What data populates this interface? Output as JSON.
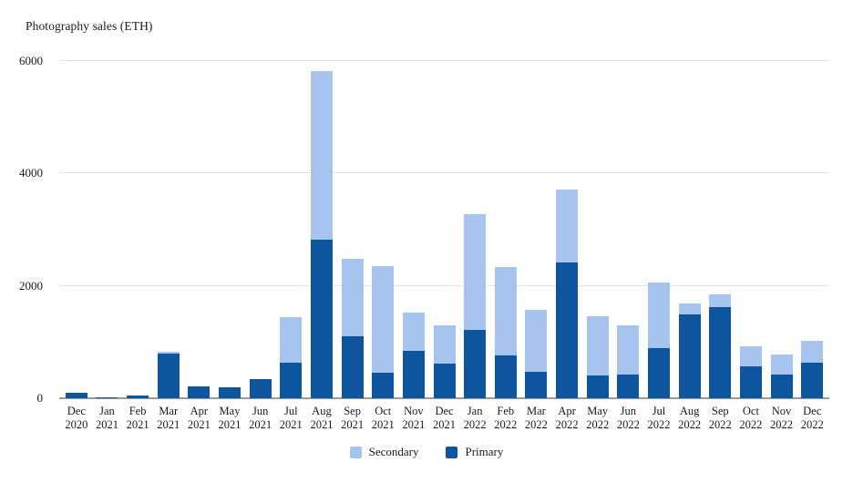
{
  "title": "Photography sales (ETH)",
  "colors": {
    "primary": "#0E55A0",
    "secondary": "#A7C4EF",
    "gridline": "#E3E3E3",
    "axis_line": "#9A9A9A",
    "text": "#1A1A1A"
  },
  "legend": {
    "items": [
      {
        "label": "Secondary",
        "color_key": "secondary"
      },
      {
        "label": "Primary",
        "color_key": "primary"
      }
    ]
  },
  "chart_data": {
    "type": "bar",
    "stacked": true,
    "title": "Photography sales (ETH)",
    "xlabel": "",
    "ylabel": "Photography sales (ETH)",
    "ylim": [
      0,
      6000
    ],
    "yticks": [
      0,
      2000,
      4000,
      6000
    ],
    "grid": "horizontal",
    "legend_position": "bottom-center",
    "categories": [
      "Dec 2020",
      "Jan 2021",
      "Feb 2021",
      "Mar 2021",
      "Apr 2021",
      "May 2021",
      "Jun 2021",
      "Jul 2021",
      "Aug 2021",
      "Sep 2021",
      "Oct 2021",
      "Nov 2021",
      "Dec 2021",
      "Jan 2022",
      "Feb 2022",
      "Mar 2022",
      "Apr 2022",
      "May 2022",
      "Jun 2022",
      "Jul 2022",
      "Aug 2022",
      "Sep 2022",
      "Oct 2022",
      "Nov 2022",
      "Dec 2022"
    ],
    "series": [
      {
        "name": "Primary",
        "color": "#0E55A0",
        "values": [
          90,
          10,
          55,
          800,
          205,
          195,
          340,
          640,
          2820,
          1110,
          460,
          850,
          620,
          1220,
          770,
          475,
          2420,
          405,
          415,
          895,
          1500,
          1620,
          570,
          420,
          640
        ]
      },
      {
        "name": "Secondary",
        "color": "#A7C4EF",
        "values": [
          0,
          0,
          0,
          30,
          0,
          0,
          0,
          810,
          3000,
          1370,
          1890,
          680,
          670,
          2050,
          1560,
          1100,
          1290,
          1050,
          875,
          1165,
          190,
          230,
          360,
          365,
          375
        ]
      }
    ]
  }
}
